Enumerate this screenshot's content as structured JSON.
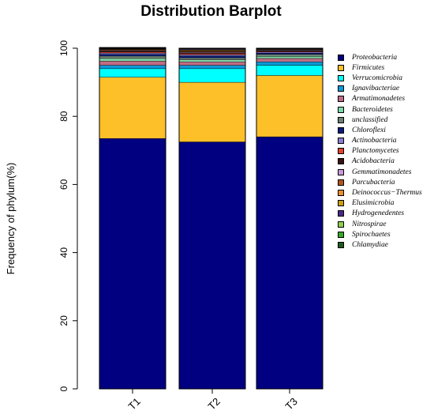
{
  "chart_data": {
    "type": "bar",
    "stacked": true,
    "title": "Distribution Barplot",
    "ylabel": "Frequency of phylum(%)",
    "xlabel": "",
    "ylim": [
      0,
      100
    ],
    "yticks": [
      0,
      20,
      40,
      60,
      80,
      100
    ],
    "categories": [
      "T1",
      "T2",
      "T3"
    ],
    "series": [
      {
        "name": "Proteobacteria",
        "color": "#000080",
        "values": [
          73.5,
          72.5,
          74.0
        ]
      },
      {
        "name": "Firmicutes",
        "color": "#FEC029",
        "values": [
          18.0,
          17.5,
          18.0
        ]
      },
      {
        "name": "Verrucomicrobia",
        "color": "#00FFFF",
        "values": [
          2.5,
          4.0,
          3.0
        ]
      },
      {
        "name": "Ignavibacteriae",
        "color": "#0B9AD8",
        "values": [
          1.0,
          1.0,
          1.0
        ]
      },
      {
        "name": "Armatimonadetes",
        "color": "#C06C84",
        "values": [
          1.2,
          1.0,
          1.0
        ]
      },
      {
        "name": "Bacteroidetes",
        "color": "#7ED8A8",
        "values": [
          0.8,
          0.6,
          0.6
        ]
      },
      {
        "name": "unclassified",
        "color": "#6E8272",
        "values": [
          0.7,
          0.6,
          0.6
        ]
      },
      {
        "name": "Chloroflexi",
        "color": "#081C7E",
        "values": [
          0.5,
          0.5,
          0.4
        ]
      },
      {
        "name": "Actinobacteria",
        "color": "#8A7FD0",
        "values": [
          0.4,
          0.4,
          0.3
        ]
      },
      {
        "name": "Planctomycetes",
        "color": "#E0442C",
        "values": [
          0.3,
          0.3,
          0.2
        ]
      },
      {
        "name": "Acidobacteria",
        "color": "#3B1010",
        "values": [
          0.3,
          0.3,
          0.2
        ]
      },
      {
        "name": "Gemmatimonadetes",
        "color": "#C79AD8",
        "values": [
          0.2,
          0.2,
          0.2
        ]
      },
      {
        "name": "Parcubacteria",
        "color": "#B0571E",
        "values": [
          0.2,
          0.2,
          0.1
        ]
      },
      {
        "name": "Deinococcus−Thermus",
        "color": "#E89030",
        "values": [
          0.1,
          0.2,
          0.1
        ]
      },
      {
        "name": "Elusimicrobia",
        "color": "#C8A010",
        "values": [
          0.1,
          0.2,
          0.1
        ]
      },
      {
        "name": "Hydrogenedentes",
        "color": "#4B2A86",
        "values": [
          0.1,
          0.2,
          0.1
        ]
      },
      {
        "name": "Nitrospirae",
        "color": "#90D050",
        "values": [
          0.1,
          0.1,
          0.1
        ]
      },
      {
        "name": "Spirochaetes",
        "color": "#38A828",
        "values": [
          0.1,
          0.1,
          0.0
        ]
      },
      {
        "name": "Chlamydiae",
        "color": "#1E5A1E",
        "values": [
          0.1,
          0.1,
          0.0
        ]
      }
    ],
    "grid": false,
    "legend_position": "right"
  }
}
